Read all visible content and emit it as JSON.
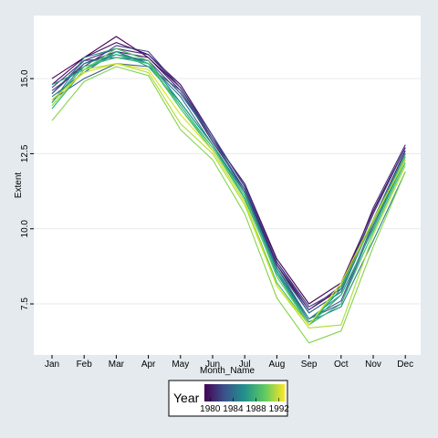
{
  "chart_data": {
    "type": "line",
    "title": "",
    "xlabel": "Month_Name",
    "ylabel": "Extent",
    "categories": [
      "Jan",
      "Feb",
      "Mar",
      "Apr",
      "May",
      "Jun",
      "Jul",
      "Aug",
      "Sep",
      "Oct",
      "Nov",
      "Dec"
    ],
    "y_ticks": [
      "7.5",
      "10.0",
      "12.5",
      "15.0"
    ],
    "y_tick_values": [
      7.5,
      10.0,
      12.5,
      15.0
    ],
    "ylim": [
      5.8,
      17.1
    ],
    "grid": true,
    "legend": {
      "title": "Year",
      "placement": "bottom",
      "labels": [
        "1980",
        "1984",
        "1988",
        "1992"
      ],
      "range": [
        1979,
        1993
      ]
    },
    "series": [
      {
        "year": 1979,
        "color": "#440154",
        "values": [
          15.0,
          15.7,
          16.4,
          15.7,
          14.7,
          13.0,
          11.5,
          9.0,
          7.5,
          8.2,
          10.6,
          12.7
        ]
      },
      {
        "year": 1980,
        "color": "#46085c",
        "values": [
          14.8,
          15.7,
          16.2,
          15.8,
          14.8,
          13.1,
          11.4,
          8.8,
          7.3,
          8.0,
          10.5,
          12.7
        ]
      },
      {
        "year": 1981,
        "color": "#481769",
        "values": [
          14.5,
          15.5,
          15.9,
          15.7,
          14.6,
          12.9,
          11.3,
          8.8,
          7.2,
          7.9,
          10.3,
          12.6
        ]
      },
      {
        "year": 1982,
        "color": "#472a7a",
        "values": [
          14.7,
          15.6,
          16.0,
          15.8,
          14.7,
          13.0,
          11.5,
          8.9,
          7.4,
          8.0,
          10.7,
          12.8
        ]
      },
      {
        "year": 1983,
        "color": "#414487",
        "values": [
          14.6,
          15.4,
          16.1,
          15.9,
          14.7,
          13.1,
          11.4,
          8.9,
          7.3,
          8.1,
          10.5,
          12.7
        ]
      },
      {
        "year": 1984,
        "color": "#3b528b",
        "values": [
          14.5,
          15.6,
          15.7,
          15.6,
          14.5,
          13.0,
          11.3,
          8.7,
          7.0,
          7.6,
          10.2,
          12.5
        ]
      },
      {
        "year": 1985,
        "color": "#355f8d",
        "values": [
          14.3,
          15.0,
          15.5,
          15.4,
          14.6,
          13.0,
          11.2,
          8.6,
          7.0,
          7.5,
          10.1,
          12.4
        ]
      },
      {
        "year": 1986,
        "color": "#2c728e",
        "values": [
          14.4,
          15.2,
          15.9,
          15.5,
          14.4,
          12.8,
          11.2,
          8.7,
          7.2,
          7.9,
          10.3,
          12.5
        ]
      },
      {
        "year": 1987,
        "color": "#26828e",
        "values": [
          14.2,
          15.5,
          15.8,
          15.6,
          14.2,
          12.8,
          11.2,
          8.6,
          6.9,
          7.4,
          9.6,
          11.9
        ]
      },
      {
        "year": 1988,
        "color": "#21918c",
        "values": [
          14.2,
          15.7,
          16.0,
          15.6,
          14.2,
          12.8,
          11.0,
          8.5,
          7.0,
          7.8,
          10.0,
          12.4
        ]
      },
      {
        "year": 1989,
        "color": "#1fa088",
        "values": [
          14.8,
          15.3,
          15.9,
          15.4,
          14.2,
          12.8,
          11.1,
          8.6,
          6.8,
          8.0,
          10.3,
          12.5
        ]
      },
      {
        "year": 1990,
        "color": "#28ae80",
        "values": [
          14.0,
          15.3,
          15.8,
          15.5,
          14.1,
          12.7,
          11.0,
          8.5,
          6.8,
          7.8,
          10.0,
          12.3
        ]
      },
      {
        "year": 1991,
        "color": "#3fbc73",
        "values": [
          14.2,
          15.4,
          15.7,
          15.5,
          14.0,
          12.6,
          10.9,
          8.2,
          6.8,
          7.5,
          9.9,
          12.2
        ]
      },
      {
        "year": 1992,
        "color": "#5ec962",
        "values": [
          14.1,
          15.3,
          16.0,
          15.6,
          14.0,
          12.7,
          11.1,
          8.4,
          6.8,
          8.1,
          10.2,
          12.4
        ]
      },
      {
        "year": 1993,
        "color": "#84d44b",
        "values": [
          13.6,
          14.9,
          15.4,
          15.1,
          13.3,
          12.3,
          10.5,
          7.7,
          6.2,
          6.6,
          9.4,
          11.9
        ]
      },
      {
        "year": 1993.5,
        "color": "#addc30",
        "values": [
          14.1,
          15.3,
          15.5,
          15.2,
          13.5,
          12.5,
          10.8,
          8.1,
          6.7,
          6.8,
          9.8,
          12.1
        ]
      },
      {
        "year": 1993.8,
        "color": "#d8e219",
        "values": [
          14.3,
          15.2,
          15.5,
          15.3,
          13.8,
          12.6,
          10.9,
          8.1,
          6.8,
          8.2,
          10.3,
          12.3
        ]
      }
    ]
  }
}
